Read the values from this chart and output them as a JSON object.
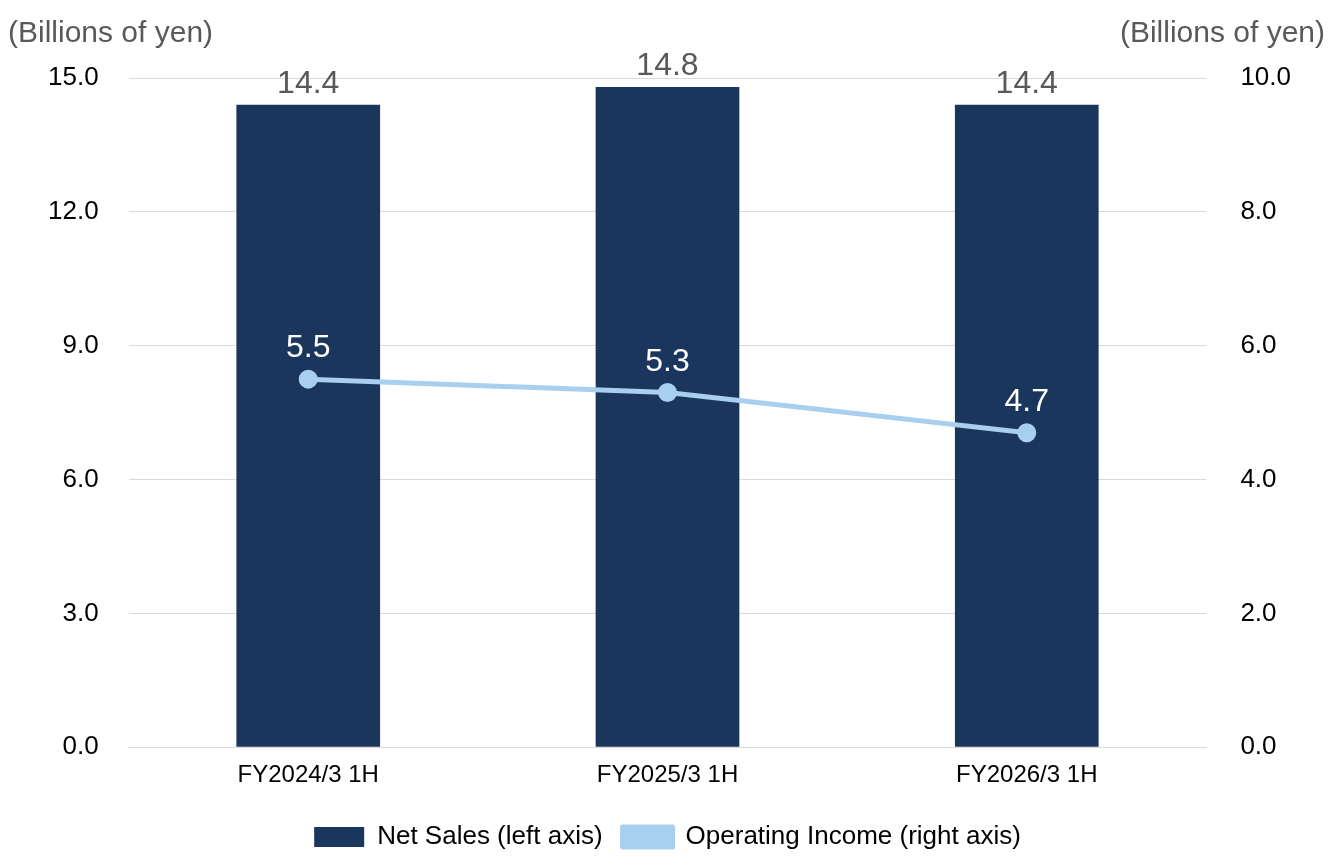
{
  "chart_data": {
    "type": "bar",
    "ylabel": "(Billions of yen)",
    "y2label": "(Billions of yen)",
    "categories": [
      "FY2024/3 1H",
      "FY2025/3 1H",
      "FY2026/3 1H"
    ],
    "series": [
      {
        "name": "Net Sales (left axis)",
        "color": "#1b365d",
        "values": [
          14.4,
          14.8,
          14.4
        ]
      },
      {
        "name": "Operating Income (right axis)",
        "type": "line",
        "axis": "y2",
        "color": "#a9cfee",
        "values": [
          5.5,
          5.3,
          4.7
        ]
      }
    ],
    "ylim": [
      0,
      15
    ],
    "yticks": [
      {
        "value": 0,
        "label": "0.0"
      },
      {
        "value": 3,
        "label": "3.0"
      },
      {
        "value": 6,
        "label": "6.0"
      },
      {
        "value": 9,
        "label": "9.0"
      },
      {
        "value": 12,
        "label": "12.0"
      },
      {
        "value": 15,
        "label": "15.0"
      }
    ],
    "y2lim": [
      0,
      10
    ],
    "y2ticks": [
      {
        "value": 0,
        "label": "0.0"
      },
      {
        "value": 2,
        "label": "2.0"
      },
      {
        "value": 4,
        "label": "4.0"
      },
      {
        "value": 6,
        "label": "6.0"
      },
      {
        "value": 8,
        "label": "8.0"
      },
      {
        "value": 10,
        "label": "10.0"
      }
    ],
    "grid": "y",
    "legend": "bottom",
    "data_labels": true,
    "marker": "circle"
  }
}
